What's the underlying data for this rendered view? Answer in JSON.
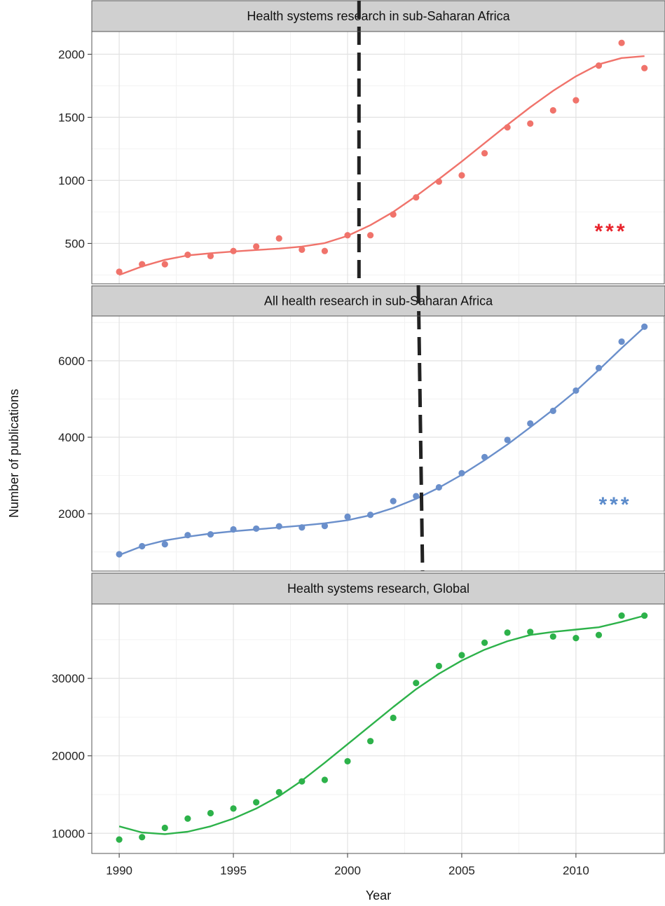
{
  "chart_data": {
    "type": "scatter",
    "xlabel": "Year",
    "ylabel": "Number of publications",
    "x": [
      1990,
      1991,
      1992,
      1993,
      1994,
      1995,
      1996,
      1997,
      1998,
      1999,
      2000,
      2001,
      2002,
      2003,
      2004,
      2005,
      2006,
      2007,
      2008,
      2009,
      2010,
      2011,
      2012,
      2013
    ],
    "x_ticks": [
      1990,
      1995,
      2000,
      2005,
      2010
    ],
    "xlim": [
      1988.8,
      2013.9
    ],
    "grid": true,
    "panels": [
      {
        "title": "Health systems research in sub-Saharan Africa",
        "color": "#F0736B",
        "values": [
          275,
          335,
          335,
          410,
          400,
          440,
          475,
          540,
          450,
          440,
          565,
          565,
          730,
          865,
          990,
          1040,
          1215,
          1420,
          1450,
          1555,
          1635,
          1910,
          2090,
          1890
        ],
        "fit": [
          250,
          318,
          370,
          405,
          422,
          436,
          448,
          459,
          475,
          503,
          560,
          645,
          750,
          875,
          1010,
          1150,
          1295,
          1440,
          1580,
          1710,
          1825,
          1920,
          1970,
          1985
        ],
        "breakpoint": 2000.5,
        "significance": "***",
        "sig_color": "#E8232B",
        "y_ticks": [
          500,
          1000,
          1500,
          2000
        ],
        "ylim": [
          180,
          2180
        ]
      },
      {
        "title": "All health research in sub-Saharan Africa",
        "color": "#6A8FCB",
        "values": [
          940,
          1150,
          1200,
          1440,
          1460,
          1590,
          1610,
          1670,
          1640,
          1680,
          1920,
          1970,
          2330,
          2460,
          2690,
          3060,
          3480,
          3930,
          4360,
          4690,
          5220,
          5810,
          6500,
          6890
        ],
        "fit": [
          920,
          1150,
          1300,
          1400,
          1480,
          1540,
          1590,
          1640,
          1690,
          1750,
          1830,
          1960,
          2150,
          2390,
          2680,
          3020,
          3400,
          3810,
          4260,
          4720,
          5210,
          5760,
          6330,
          6880
        ],
        "breakpoint": 2003.1,
        "significance": "***",
        "sig_color": "#5B8BCB",
        "y_ticks": [
          2000,
          4000,
          6000
        ],
        "ylim": [
          500,
          7170
        ]
      },
      {
        "title": "Health systems research, Global",
        "color": "#2DB24A",
        "values": [
          9200,
          9500,
          10700,
          11900,
          12600,
          13200,
          14000,
          15300,
          16700,
          16900,
          19300,
          21900,
          24900,
          29400,
          31600,
          33000,
          34600,
          35900,
          36000,
          35400,
          35200,
          35600,
          38100,
          38100
        ],
        "fit": [
          10900,
          10100,
          9900,
          10200,
          10900,
          11900,
          13200,
          14800,
          16800,
          19100,
          21500,
          23900,
          26300,
          28600,
          30600,
          32300,
          33700,
          34800,
          35600,
          36000,
          36300,
          36600,
          37300,
          38100
        ],
        "y_ticks": [
          10000,
          20000,
          30000
        ],
        "ylim": [
          7400,
          39600
        ]
      }
    ]
  }
}
